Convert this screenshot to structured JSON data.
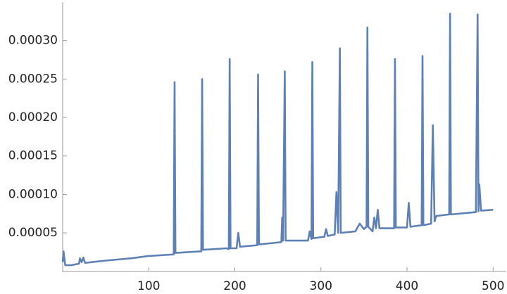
{
  "chart_data": {
    "type": "line",
    "x": [
      0,
      1,
      3,
      10,
      19,
      20,
      22,
      24,
      26,
      50,
      80,
      100,
      129,
      130,
      131,
      161,
      162,
      163,
      190,
      193,
      194,
      195,
      202,
      204,
      206,
      226,
      227,
      228,
      254,
      255,
      256,
      258,
      259,
      285,
      287,
      289,
      290,
      291,
      304,
      306,
      308,
      316,
      318,
      320,
      322,
      323,
      340,
      345,
      350,
      353,
      354,
      355,
      360,
      362,
      364,
      366,
      368,
      385,
      386,
      387,
      400,
      402,
      404,
      417,
      418,
      419,
      428,
      430,
      432,
      434,
      449,
      450,
      451,
      480,
      482,
      483,
      484,
      486,
      500
    ],
    "values": [
      1.2e-05,
      2.6e-05,
      8e-06,
      8e-06,
      1e-05,
      1.7e-05,
      1.2e-05,
      1.8e-05,
      1.1e-05,
      1.4e-05,
      1.7e-05,
      2e-05,
      2.2e-05,
      0.000246,
      2.4e-05,
      2.6e-05,
      0.00025,
      2.8e-05,
      3e-05,
      2.9e-05,
      0.000276,
      3e-05,
      3e-05,
      5e-05,
      3.2e-05,
      3.4e-05,
      0.000256,
      3.5e-05,
      3.8e-05,
      7e-05,
      4e-05,
      0.00026,
      4e-05,
      4e-05,
      5.2e-05,
      4.2e-05,
      0.000272,
      4.3e-05,
      4.5e-05,
      5.5e-05,
      4.6e-05,
      4.8e-05,
      0.000103,
      5e-05,
      0.00029,
      5e-05,
      5.2e-05,
      6.2e-05,
      5.5e-05,
      5.8e-05,
      0.000317,
      5.8e-05,
      5.2e-05,
      7e-05,
      5.6e-05,
      8e-05,
      5.6e-05,
      5.6e-05,
      0.000276,
      5.7e-05,
      5.7e-05,
      8.9e-05,
      5.8e-05,
      6e-05,
      0.00028,
      6e-05,
      6.2e-05,
      0.00019,
      6.5e-05,
      7.2e-05,
      7.4e-05,
      0.000335,
      7.4e-05,
      7.7e-05,
      0.000334,
      7.8e-05,
      0.000113,
      7.9e-05,
      8e-05
    ],
    "color": "#5e81b5",
    "xlim": [
      0,
      515
    ],
    "ylim": [
      0,
      0.00035
    ],
    "xticks": [
      100,
      200,
      300,
      400,
      500
    ],
    "yticks": [
      5e-05,
      {
        "value": 0.0001,
        "label": "0.00010"
      },
      0.00015,
      {
        "value": 0.0002,
        "label": "0.00020"
      },
      0.00025,
      {
        "value": 0.0003,
        "label": "0.00030"
      }
    ]
  }
}
